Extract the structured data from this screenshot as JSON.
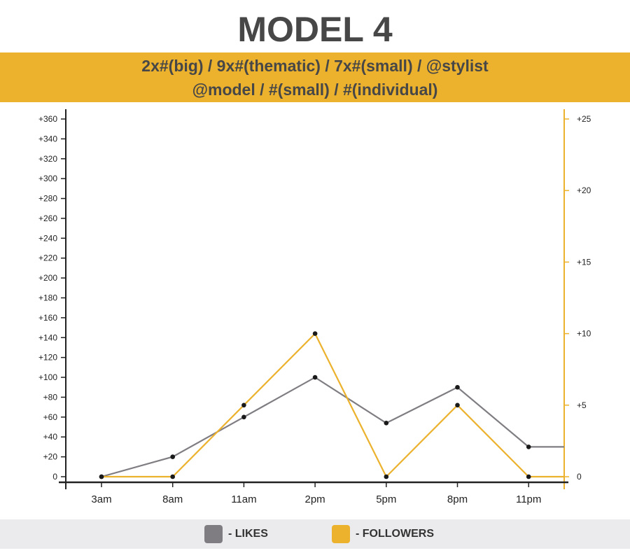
{
  "header": {
    "title": "MODEL 4",
    "subtitle_line1": "2x#(big) / 9x#(thematic) / 7x#(small) / @stylist",
    "subtitle_line2": "@model / #(small) / #(individual)"
  },
  "colors": {
    "likes": "#7f7d82",
    "followers": "#ecb22e",
    "axis": "#222222",
    "title": "#474747"
  },
  "legend": {
    "likes_label": "- LIKES",
    "followers_label": "- FOLLOWERS"
  },
  "chart_data": {
    "type": "line",
    "title": "MODEL 4",
    "categories": [
      "3am",
      "8am",
      "11am",
      "2pm",
      "5pm",
      "8pm",
      "11pm"
    ],
    "series": [
      {
        "name": "LIKES",
        "axis": "left",
        "values": [
          0,
          20,
          60,
          100,
          54,
          90,
          30
        ],
        "tail_value": 30
      },
      {
        "name": "FOLLOWERS",
        "axis": "right",
        "values": [
          0,
          0,
          5,
          10,
          0,
          5,
          0
        ],
        "tail_value": 0
      }
    ],
    "left_axis": {
      "ylim": [
        0,
        360
      ],
      "ticks": [
        0,
        20,
        40,
        60,
        80,
        100,
        120,
        140,
        160,
        180,
        200,
        220,
        240,
        260,
        280,
        300,
        320,
        340,
        360
      ],
      "tick_labels": [
        "0",
        "+20",
        "+40",
        "+60",
        "+80",
        "+100",
        "+120",
        "+140",
        "+160",
        "+180",
        "+200",
        "+220",
        "+240",
        "+260",
        "+280",
        "+300",
        "+320",
        "+340",
        "+360"
      ]
    },
    "right_axis": {
      "ylim": [
        0,
        25
      ],
      "ticks": [
        0,
        5,
        10,
        15,
        20,
        25
      ],
      "tick_labels": [
        "0",
        "+5",
        "+10",
        "+15",
        "+20",
        "+25"
      ]
    },
    "grid": false,
    "legend_position": "bottom-center"
  }
}
